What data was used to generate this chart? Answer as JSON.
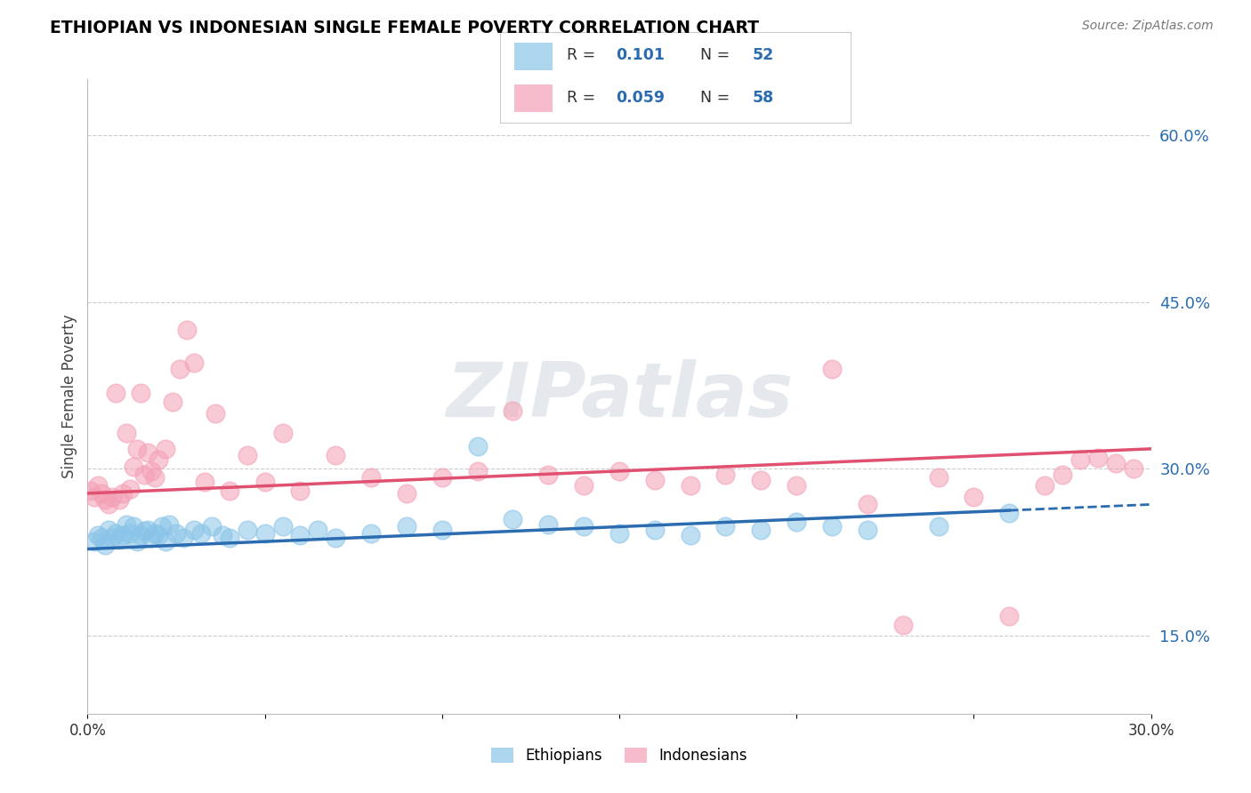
{
  "title": "ETHIOPIAN VS INDONESIAN SINGLE FEMALE POVERTY CORRELATION CHART",
  "source": "Source: ZipAtlas.com",
  "ylabel": "Single Female Poverty",
  "xlim": [
    0.0,
    0.3
  ],
  "ylim": [
    0.08,
    0.65
  ],
  "xticks": [
    0.0,
    0.05,
    0.1,
    0.15,
    0.2,
    0.25,
    0.3
  ],
  "xticklabels": [
    "0.0%",
    "",
    "",
    "",
    "",
    "",
    "30.0%"
  ],
  "yticks_right": [
    0.15,
    0.3,
    0.45,
    0.6
  ],
  "ytick_labels_right": [
    "15.0%",
    "30.0%",
    "45.0%",
    "60.0%"
  ],
  "blue_color": "#89c4e8",
  "pink_color": "#f4a0b5",
  "blue_line_color": "#2b6cb0",
  "pink_line_color": "#e05070",
  "watermark": "ZIPatlas",
  "blue_r": "0.101",
  "blue_n": "52",
  "pink_r": "0.059",
  "pink_n": "58",
  "ethiopian_label": "Ethiopians",
  "indonesian_label": "Indonesians",
  "ethiopian_x": [
    0.002,
    0.003,
    0.004,
    0.005,
    0.006,
    0.007,
    0.008,
    0.009,
    0.01,
    0.011,
    0.012,
    0.013,
    0.014,
    0.015,
    0.016,
    0.017,
    0.018,
    0.019,
    0.02,
    0.021,
    0.022,
    0.023,
    0.025,
    0.027,
    0.03,
    0.032,
    0.035,
    0.038,
    0.04,
    0.045,
    0.05,
    0.055,
    0.06,
    0.065,
    0.07,
    0.08,
    0.09,
    0.1,
    0.11,
    0.12,
    0.13,
    0.14,
    0.15,
    0.16,
    0.17,
    0.18,
    0.19,
    0.2,
    0.21,
    0.22,
    0.24,
    0.26
  ],
  "ethiopian_y": [
    0.235,
    0.24,
    0.238,
    0.232,
    0.245,
    0.238,
    0.242,
    0.236,
    0.24,
    0.25,
    0.242,
    0.248,
    0.235,
    0.24,
    0.244,
    0.245,
    0.238,
    0.242,
    0.24,
    0.248,
    0.235,
    0.25,
    0.242,
    0.238,
    0.245,
    0.242,
    0.248,
    0.24,
    0.238,
    0.245,
    0.242,
    0.248,
    0.24,
    0.245,
    0.238,
    0.242,
    0.248,
    0.245,
    0.32,
    0.255,
    0.25,
    0.248,
    0.242,
    0.245,
    0.24,
    0.248,
    0.245,
    0.252,
    0.248,
    0.245,
    0.248,
    0.26
  ],
  "indonesian_x": [
    0.001,
    0.002,
    0.003,
    0.004,
    0.005,
    0.006,
    0.007,
    0.008,
    0.009,
    0.01,
    0.011,
    0.012,
    0.013,
    0.014,
    0.015,
    0.016,
    0.017,
    0.018,
    0.019,
    0.02,
    0.022,
    0.024,
    0.026,
    0.028,
    0.03,
    0.033,
    0.036,
    0.04,
    0.045,
    0.05,
    0.055,
    0.06,
    0.07,
    0.08,
    0.09,
    0.1,
    0.11,
    0.12,
    0.13,
    0.14,
    0.15,
    0.16,
    0.17,
    0.18,
    0.19,
    0.2,
    0.21,
    0.22,
    0.23,
    0.24,
    0.25,
    0.26,
    0.27,
    0.275,
    0.28,
    0.285,
    0.29,
    0.295
  ],
  "indonesian_y": [
    0.28,
    0.275,
    0.285,
    0.278,
    0.272,
    0.268,
    0.275,
    0.368,
    0.272,
    0.278,
    0.332,
    0.282,
    0.302,
    0.318,
    0.368,
    0.295,
    0.315,
    0.298,
    0.292,
    0.308,
    0.318,
    0.36,
    0.39,
    0.425,
    0.395,
    0.288,
    0.35,
    0.28,
    0.312,
    0.288,
    0.332,
    0.28,
    0.312,
    0.292,
    0.278,
    0.292,
    0.298,
    0.352,
    0.295,
    0.285,
    0.298,
    0.29,
    0.285,
    0.295,
    0.29,
    0.285,
    0.39,
    0.268,
    0.16,
    0.292,
    0.275,
    0.168,
    0.285,
    0.295,
    0.308,
    0.31,
    0.305,
    0.3
  ]
}
